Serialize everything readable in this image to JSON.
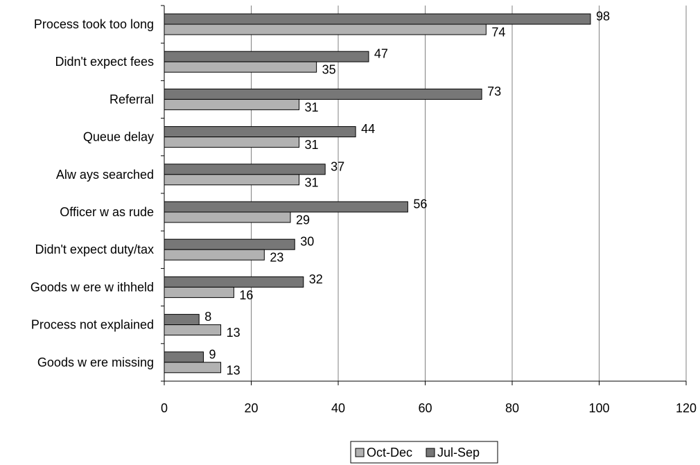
{
  "chart_data": {
    "type": "bar",
    "orientation": "horizontal",
    "categories": [
      "Process took too long",
      "Didn't expect fees",
      "Referral",
      "Queue delay",
      "Alw ays searched",
      "Officer w as rude",
      "Didn't expect duty/tax",
      "Goods w ere w ithheld",
      "Process not explained",
      "Goods w ere missing"
    ],
    "series": [
      {
        "name": "Jul-Sep",
        "values": [
          98,
          47,
          73,
          44,
          37,
          56,
          30,
          32,
          8,
          9
        ],
        "color": "#777777"
      },
      {
        "name": "Oct-Dec",
        "values": [
          74,
          35,
          31,
          31,
          31,
          29,
          23,
          16,
          13,
          13
        ],
        "color": "#b2b2b2"
      }
    ],
    "legend_order": [
      "Oct-Dec",
      "Jul-Sep"
    ],
    "xlim": [
      0,
      120
    ],
    "xticks": [
      0,
      20,
      40,
      60,
      80,
      100,
      120
    ],
    "grid": "vertical",
    "legend_position": "bottom",
    "data_labels": true
  }
}
